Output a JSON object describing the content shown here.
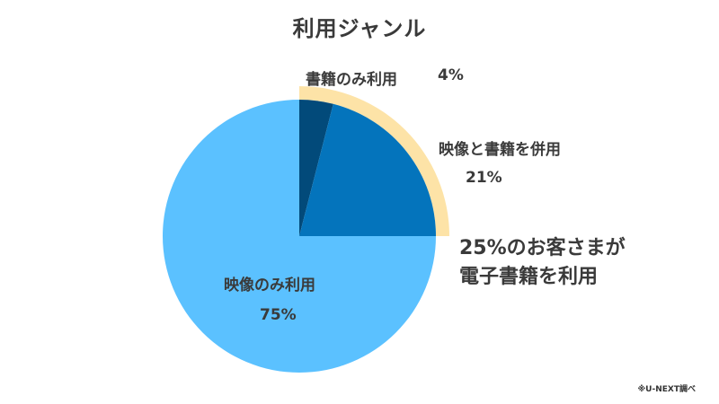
{
  "chart_data": {
    "type": "pie",
    "title": "利用ジャンル",
    "slices": [
      {
        "label": "書籍のみ利用",
        "value": 4,
        "value_label": "4%",
        "color": "#024a7a"
      },
      {
        "label": "映像と書籍を併用",
        "value": 21,
        "value_label": "21%",
        "color": "#0474bc"
      },
      {
        "label": "映像のみ利用",
        "value": 75,
        "value_label": "75%",
        "color": "#5bc1ff"
      }
    ],
    "highlight": {
      "color": "#fde3a7",
      "callout_lines": [
        "25%のお客さまが",
        "電子書籍を利用"
      ]
    },
    "source_note": "※U-NEXT調べ"
  }
}
